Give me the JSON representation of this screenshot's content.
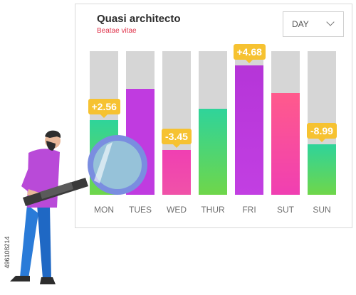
{
  "card": {
    "title": "Quasi architecto",
    "subtitle": "Beatae vitae",
    "dropdown_value": "DAY"
  },
  "bars": [
    {
      "day": "MON",
      "fill": 0.52,
      "badge": "+2.56",
      "top_color": "#2fd49a",
      "bottom_color": "#6fd64a"
    },
    {
      "day": "TUES",
      "fill": 0.74,
      "badge": "",
      "top_color": "#c03be0",
      "bottom_color": "#c03be0"
    },
    {
      "day": "WED",
      "fill": 0.31,
      "badge": "-3.45",
      "top_color": "#f03fb2",
      "bottom_color": "#f052a8"
    },
    {
      "day": "THUR",
      "fill": 0.6,
      "badge": "",
      "top_color": "#2fd49a",
      "bottom_color": "#6fd64a"
    },
    {
      "day": "FRI",
      "fill": 0.9,
      "badge": "+4.68",
      "top_color": "#b535d8",
      "bottom_color": "#c23fe2"
    },
    {
      "day": "SUT",
      "fill": 0.71,
      "badge": "",
      "top_color": "#ff5a8c",
      "bottom_color": "#f03fb2"
    },
    {
      "day": "SUN",
      "fill": 0.35,
      "badge": "-8.99",
      "top_color": "#2fd49a",
      "bottom_color": "#6fd64a"
    }
  ],
  "stock_id": "496108214"
}
